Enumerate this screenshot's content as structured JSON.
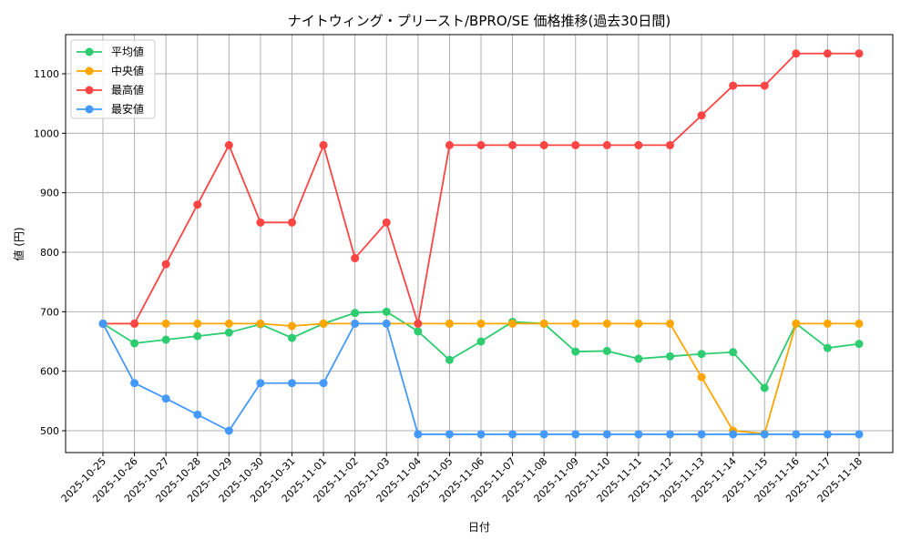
{
  "chart_data": {
    "type": "line",
    "title": "ナイトウィング・プリースト/BPRO/SE 価格推移(過去30日間)",
    "xlabel": "日付",
    "ylabel": "値 (円)",
    "ylim": [
      460,
      1160
    ],
    "yticks": [
      500,
      600,
      700,
      800,
      900,
      1000,
      1100
    ],
    "grid": true,
    "legend_position": "top-left",
    "categories": [
      "2025-10-25",
      "2025-10-26",
      "2025-10-27",
      "2025-10-28",
      "2025-10-29",
      "2025-10-30",
      "2025-10-31",
      "2025-11-01",
      "2025-11-02",
      "2025-11-03",
      "2025-11-04",
      "2025-11-05",
      "2025-11-06",
      "2025-11-07",
      "2025-11-08",
      "2025-11-09",
      "2025-11-10",
      "2025-11-11",
      "2025-11-12",
      "2025-11-13",
      "2025-11-14",
      "2025-11-15",
      "2025-11-16",
      "2025-11-17",
      "2025-11-18"
    ],
    "series": [
      {
        "name": "平均値",
        "color": "#2ecc71",
        "values": [
          680,
          647,
          653,
          659,
          665,
          679,
          656,
          680,
          698,
          700,
          667,
          619,
          650,
          683,
          680,
          633,
          634,
          621,
          625,
          629,
          632,
          572,
          680,
          639,
          646
        ]
      },
      {
        "name": "中央値",
        "color": "#ffa500",
        "values": [
          680,
          680,
          680,
          680,
          680,
          680,
          676,
          680,
          680,
          680,
          680,
          680,
          680,
          680,
          680,
          680,
          680,
          680,
          680,
          590,
          500,
          495,
          680,
          680,
          680
        ]
      },
      {
        "name": "最高値",
        "color": "#ff4444",
        "values": [
          680,
          680,
          780,
          880,
          980,
          850,
          850,
          980,
          790,
          850,
          680,
          980,
          980,
          980,
          980,
          980,
          980,
          980,
          980,
          1030,
          1080,
          1080,
          1134,
          1134,
          1134
        ]
      },
      {
        "name": "最安値",
        "color": "#4499ff",
        "values": [
          680,
          580,
          554,
          527,
          500,
          580,
          580,
          580,
          680,
          680,
          494,
          494,
          494,
          494,
          494,
          494,
          494,
          494,
          494,
          494,
          494,
          494,
          494,
          494,
          494
        ]
      }
    ]
  }
}
